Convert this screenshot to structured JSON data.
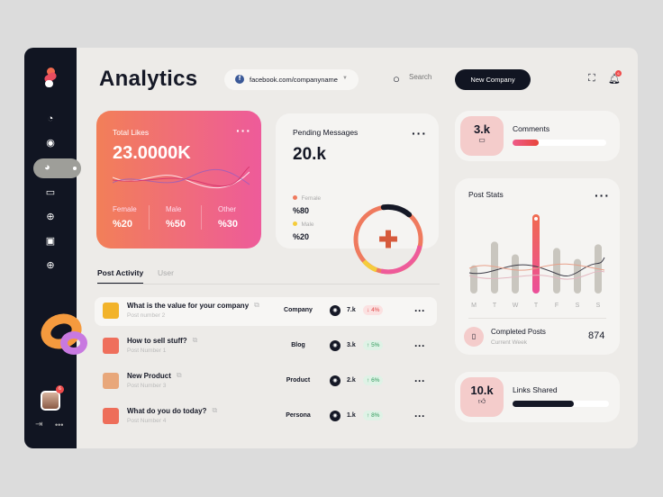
{
  "header": {
    "title": "Analytics",
    "account": "facebook.com/companyname",
    "search_placeholder": "Search",
    "new_button": "New Company",
    "notification_count": "6"
  },
  "sidebar": {
    "items": [
      "dashboard",
      "profile",
      "analytics",
      "calendar",
      "globe",
      "messages",
      "web"
    ],
    "active": "analytics",
    "avatar_badge": "6"
  },
  "total_likes": {
    "title": "Total Likes",
    "value": "23.0000K",
    "stats": [
      {
        "label": "Female",
        "value": "%20"
      },
      {
        "label": "Male",
        "value": "%50"
      },
      {
        "label": "Other",
        "value": "%30"
      }
    ]
  },
  "pending": {
    "title": "Pending Messages",
    "value": "20.k",
    "legend": [
      {
        "label": "Female",
        "value": "%80",
        "color": "#ef7a5e"
      },
      {
        "label": "Male",
        "value": "%20",
        "color": "#f5cc3b"
      }
    ]
  },
  "comments": {
    "value": "3.k",
    "label": "Comments",
    "progress": 28
  },
  "post_stats": {
    "title": "Post Stats",
    "completed_label": "Completed Posts",
    "completed_sub": "Current Week",
    "completed_value": "874"
  },
  "chart_data": {
    "type": "bar",
    "categories": [
      "M",
      "T",
      "W",
      "T",
      "F",
      "S",
      "S"
    ],
    "values": [
      31,
      57,
      43,
      87,
      50,
      38,
      54
    ],
    "highlight_index": 3
  },
  "links": {
    "value": "10.k",
    "label": "Links Shared",
    "progress": 64
  },
  "tabs": [
    "Post Activity",
    "User"
  ],
  "posts": [
    {
      "title": "What is the value for your company",
      "sub": "Post number 2",
      "category": "Company",
      "views": "7.k",
      "change": "4%",
      "dir": "down",
      "thumb": "#f2b32a"
    },
    {
      "title": "How to sell stuff?",
      "sub": "Post Number 1",
      "category": "Blog",
      "views": "3.k",
      "change": "5%",
      "dir": "up",
      "thumb": "#ef6f5c"
    },
    {
      "title": "New Product",
      "sub": "Post Number 3",
      "category": "Product",
      "views": "2.k",
      "change": "6%",
      "dir": "up",
      "thumb": "#e8a77a"
    },
    {
      "title": "What do you do today?",
      "sub": "Post Number 4",
      "category": "Persona",
      "views": "1.k",
      "change": "8%",
      "dir": "up",
      "thumb": "#ee6e5a"
    }
  ]
}
